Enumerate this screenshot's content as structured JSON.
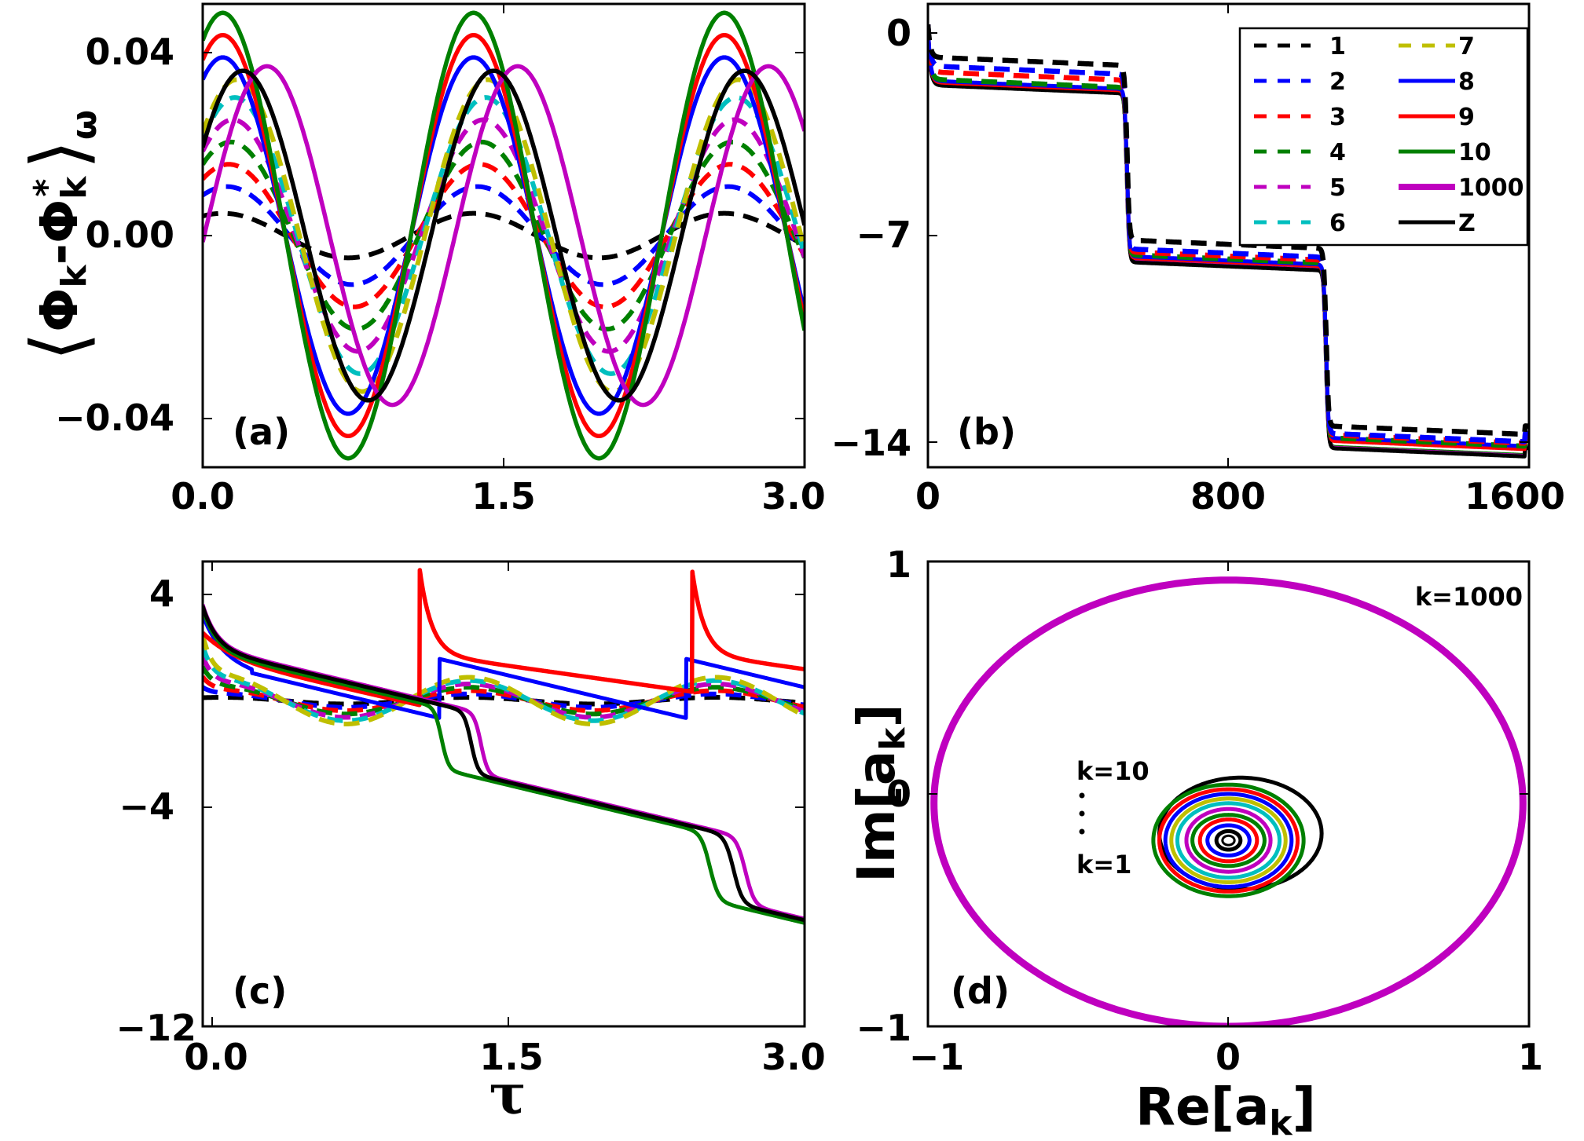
{
  "figure": {
    "colors": {
      "k1": "#000000",
      "k2": "#0000ff",
      "k3": "#ff0000",
      "k4": "#008000",
      "k5": "#bf00bf",
      "k6": "#00bfbf",
      "k7": "#bfbf00",
      "k8": "#0000ff",
      "k9": "#ff0000",
      "k10": "#008000",
      "k1000": "#bf00bf",
      "Z": "#000000"
    }
  },
  "chart_data": [
    {
      "panel": "(a)",
      "type": "line",
      "xlim": [
        0,
        3.0
      ],
      "ylim": [
        -0.052,
        0.052
      ],
      "xticks": [
        "0.0",
        "1.5",
        "3.0"
      ],
      "yticks": [
        "0.04",
        "0.00",
        "−0.04"
      ],
      "ylabel": "⟨Φk−Φk*⟩ω",
      "note": "oscillations with period ~1.25; amplitudes per curve",
      "series": [
        {
          "name": "1",
          "style": "dashed",
          "amplitude": 0.005,
          "phase_peak": 0.1
        },
        {
          "name": "2",
          "style": "dashed",
          "amplitude": 0.011,
          "phase_peak": 0.12
        },
        {
          "name": "3",
          "style": "dashed",
          "amplitude": 0.016,
          "phase_peak": 0.13
        },
        {
          "name": "4",
          "style": "dashed",
          "amplitude": 0.021,
          "phase_peak": 0.14
        },
        {
          "name": "5",
          "style": "dashed",
          "amplitude": 0.026,
          "phase_peak": 0.15
        },
        {
          "name": "6",
          "style": "dashed",
          "amplitude": 0.031,
          "phase_peak": 0.16
        },
        {
          "name": "7",
          "style": "dashed",
          "amplitude": 0.035,
          "phase_peak": 0.17
        },
        {
          "name": "8",
          "style": "solid",
          "amplitude": 0.04,
          "phase_peak": 0.1
        },
        {
          "name": "9",
          "style": "solid",
          "amplitude": 0.045,
          "phase_peak": 0.1
        },
        {
          "name": "10",
          "style": "solid",
          "amplitude": 0.05,
          "phase_peak": 0.1
        },
        {
          "name": "1000",
          "style": "solid",
          "amplitude": 0.038,
          "phase_peak": 0.32
        },
        {
          "name": "Z",
          "style": "solid",
          "amplitude": 0.037,
          "phase_peak": 0.2
        }
      ]
    },
    {
      "panel": "(b)",
      "type": "line",
      "xlim": [
        0,
        1600
      ],
      "ylim": [
        -15.0,
        0.7
      ],
      "xticks": [
        "0",
        "800",
        "1600"
      ],
      "yticks": [
        "0",
        "−7",
        "−14"
      ],
      "legend": {
        "position": "upper-right",
        "columns": 2,
        "entries": [
          "1",
          "2",
          "3",
          "4",
          "5",
          "6",
          "7",
          "8",
          "9",
          "10",
          "1000",
          "Z"
        ]
      },
      "steps_at": [
        530,
        1060
      ],
      "plateaus": {
        "dashed_1": [
          -1.1,
          -7.4,
          -13.7
        ],
        "solid": [
          -1.9,
          -7.9,
          -14.3
        ]
      }
    },
    {
      "panel": "(c)",
      "type": "line",
      "xlim": [
        -0.05,
        3.0
      ],
      "ylim": [
        -12,
        4.7
      ],
      "xticks": [
        "0.0",
        "1.5",
        "3.0"
      ],
      "yticks": [
        "4",
        "−4",
        "−12"
      ],
      "xlabel": "τ"
    },
    {
      "panel": "(d)",
      "type": "line",
      "xlim": [
        -1,
        1
      ],
      "ylim": [
        -1,
        1
      ],
      "xticks": [
        "−1",
        "0",
        "1"
      ],
      "yticks": [
        "1",
        "0",
        "−1"
      ],
      "xlabel": "Re[ak]",
      "ylabel": "Im[ak]",
      "annotations": [
        "k=1000",
        "k=10",
        "k=1"
      ],
      "note": "large ellipse k=1000 radius ~0.98 x 0.98; nested small ellipses k=1..10 centered near (0,-0.2)"
    }
  ],
  "labels": {
    "a": "(a)",
    "b": "(b)",
    "c": "(c)",
    "d": "(d)",
    "ylabel_a": "⟨Φk-Φk*⟩ω",
    "xlabel_c": "τ",
    "xlabel_d": "Re[ak]",
    "ylabel_d": "Im[ak]",
    "xlabel_d_main": "Re[a",
    "xlabel_d_sub": "k",
    "xlabel_d_end": "]",
    "ylabel_d_main": "Im[a",
    "ylabel_d_sub": "k",
    "ylabel_d_end": "]",
    "ylabel_a_phi": "Φ",
    "ylabel_a_k": "k",
    "ylabel_a_minus": "-",
    "ylabel_a_star": "*",
    "ylabel_a_omega": "ω",
    "anno_k1000": "k=1000",
    "anno_k10": "k=10",
    "anno_k1": "k=1",
    "ticks_a_x": [
      "0.0",
      "1.5",
      "3.0"
    ],
    "ticks_a_y": [
      "0.04",
      "0.00",
      "−0.04"
    ],
    "ticks_b_x": [
      "0",
      "800",
      "1600"
    ],
    "ticks_b_y": [
      "0",
      "−7",
      "−14"
    ],
    "ticks_c_x": [
      "0.0",
      "1.5",
      "3.0"
    ],
    "ticks_c_y": [
      "4",
      "−4",
      "−12"
    ],
    "ticks_d_x": [
      "−1",
      "0",
      "1"
    ],
    "ticks_d_y": [
      "1",
      "0",
      "−1"
    ],
    "legend": [
      "1",
      "2",
      "3",
      "4",
      "5",
      "6",
      "7",
      "8",
      "9",
      "10",
      "1000",
      "Z"
    ]
  }
}
